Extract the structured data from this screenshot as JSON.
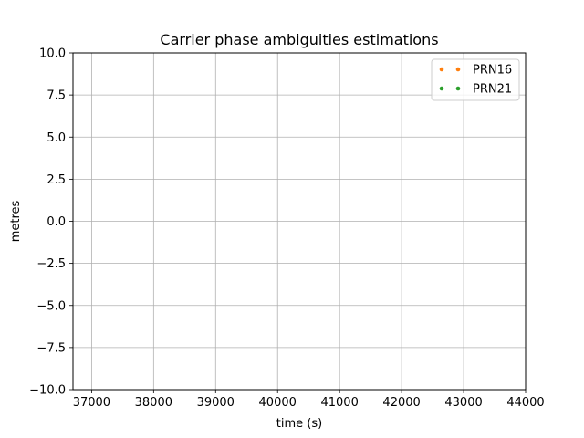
{
  "chart_data": {
    "type": "scatter",
    "title": "Carrier phase ambiguities estimations",
    "xlabel": "time (s)",
    "ylabel": "metres",
    "xlim": [
      36700,
      44000
    ],
    "ylim": [
      -10,
      10
    ],
    "xticks": [
      37000,
      38000,
      39000,
      40000,
      41000,
      42000,
      43000,
      44000
    ],
    "xtick_labels": [
      "37000",
      "38000",
      "39000",
      "40000",
      "41000",
      "42000",
      "43000",
      "44000"
    ],
    "yticks": [
      -10,
      -7.5,
      -5,
      -2.5,
      0,
      2.5,
      5,
      7.5,
      10
    ],
    "ytick_labels": [
      "−10.0",
      "−7.5",
      "−5.0",
      "−2.5",
      "0.0",
      "2.5",
      "5.0",
      "7.5",
      "10.0"
    ],
    "grid": true,
    "legend_position": "top-right",
    "series": [
      {
        "name": "PRN16",
        "color": "#ff7f0e",
        "points": []
      },
      {
        "name": "PRN21",
        "color": "#2ca02c",
        "points": []
      }
    ]
  }
}
